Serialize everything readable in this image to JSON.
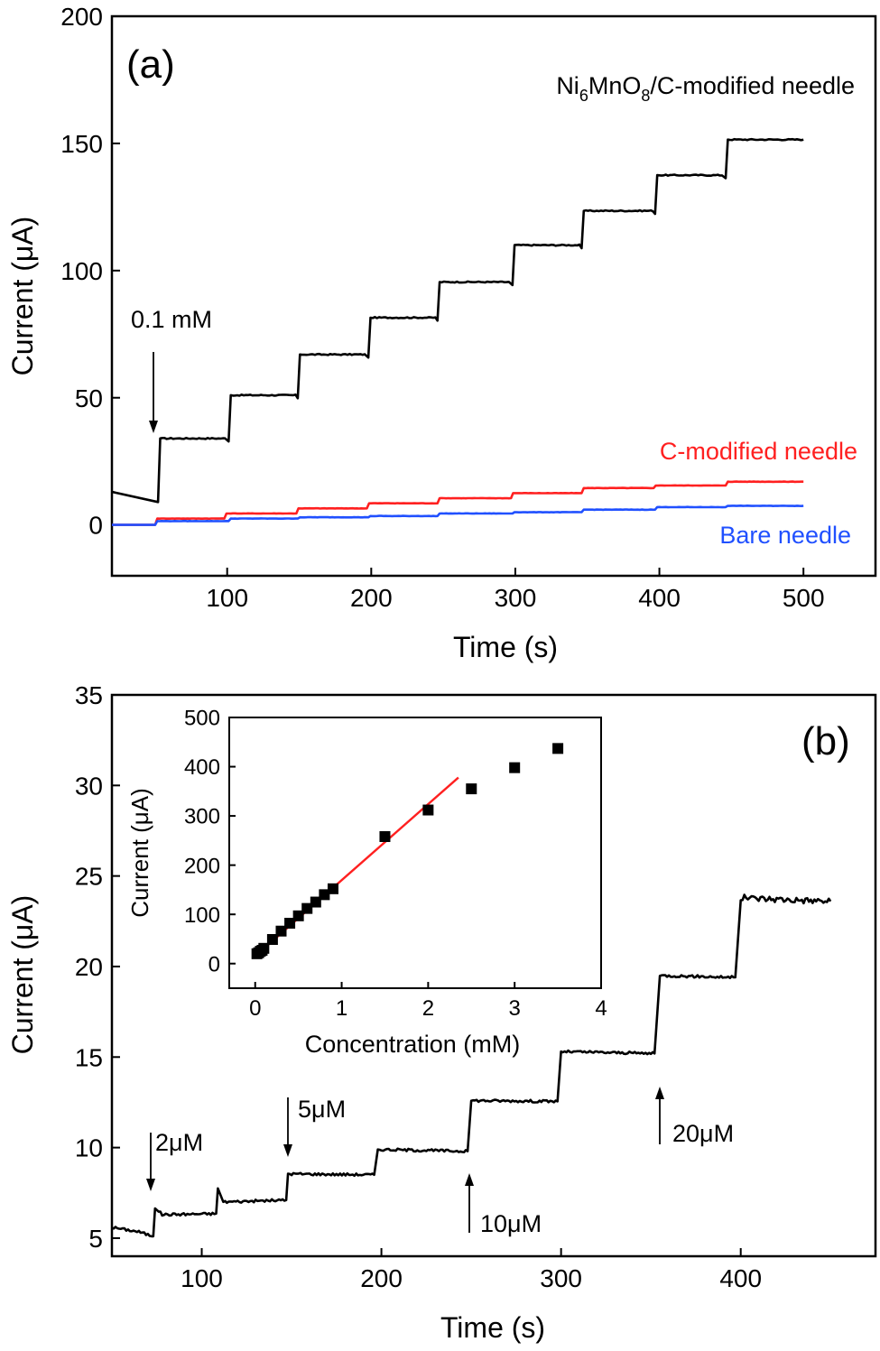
{
  "chart_data": [
    {
      "type": "line",
      "panel_label": "(a)",
      "xlabel": "Time (s)",
      "ylabel": "Current (μA)",
      "xlim": [
        20,
        550
      ],
      "ylim": [
        -20,
        200
      ],
      "xticks": [
        100,
        200,
        300,
        400,
        500
      ],
      "yticks": [
        0,
        50,
        100,
        150,
        200
      ],
      "grid": false,
      "series": [
        {
          "name": "Ni6MnO8/C-modified needle",
          "color": "#000000",
          "label_parts": {
            "a": "Ni",
            "b": "6",
            "c": "MnO",
            "d": "8",
            "e": "/C-modified needle"
          },
          "steps": {
            "start": 13,
            "pre_end": 9,
            "times": [
              52,
              101,
              149,
              198,
              246,
              298,
              346,
              397,
              446
            ],
            "levels": [
              34,
              51,
              67,
              81.5,
              95.5,
              110,
              123.5,
              137.5,
              151.5
            ],
            "end": 500
          }
        },
        {
          "name": "C-modified needle",
          "color": "#ff2020",
          "steps": {
            "start": 0,
            "pre_end": 0,
            "times": [
              50,
              98,
              148,
              197,
              246,
              297,
              346,
              396,
              446
            ],
            "levels": [
              2.5,
              4.5,
              6.5,
              8.5,
              10.5,
              12.5,
              14.5,
              15.5,
              17
            ],
            "end": 500
          }
        },
        {
          "name": "Bare needle",
          "color": "#2050ff",
          "steps": {
            "start": 0,
            "pre_end": 0,
            "times": [
              50,
              101,
              149,
              198,
              246,
              298,
              346,
              397,
              446
            ],
            "levels": [
              1.5,
              2.5,
              3,
              3.5,
              4.5,
              5,
              6,
              7,
              7.5
            ],
            "end": 500
          }
        }
      ],
      "annotations": [
        {
          "text": "0.1 mM",
          "x": 52,
          "y": 80
        }
      ]
    },
    {
      "type": "line",
      "panel_label": "(b)",
      "xlabel": "Time (s)",
      "ylabel": "Current (μA)",
      "xlim": [
        50,
        475
      ],
      "ylim": [
        4,
        35
      ],
      "xticks": [
        100,
        200,
        300,
        400
      ],
      "yticks": [
        5,
        10,
        15,
        20,
        25,
        30,
        35
      ],
      "grid": false,
      "series": [
        {
          "color": "#000000",
          "points": [
            [
              50,
              5.6
            ],
            [
              65,
              5.35
            ],
            [
              73,
              5.1
            ],
            [
              74,
              6.7
            ],
            [
              78,
              6.3
            ],
            [
              108,
              6.35
            ],
            [
              109,
              7.75
            ],
            [
              112,
              7.0
            ],
            [
              147,
              7.1
            ],
            [
              148,
              8.55
            ],
            [
              196,
              8.5
            ],
            [
              198,
              9.9
            ],
            [
              248,
              9.8
            ],
            [
              250,
              12.6
            ],
            [
              298,
              12.55
            ],
            [
              300,
              15.3
            ],
            [
              352,
              15.2
            ],
            [
              355,
              19.5
            ],
            [
              397,
              19.4
            ],
            [
              400,
              23.8
            ],
            [
              450,
              23.6
            ]
          ]
        }
      ],
      "annotations": [
        {
          "text": "2μM",
          "x": 72,
          "y": 9
        },
        {
          "text": "5μM",
          "x": 147,
          "y": 12.4
        },
        {
          "text": "10μM",
          "x": 249,
          "y": 6
        },
        {
          "text": "20μM",
          "x": 353,
          "y": 11
        }
      ],
      "inset": {
        "type": "scatter",
        "xlabel": "Concentration (mM)",
        "ylabel": "Current (μA)",
        "xlim": [
          -0.3,
          4
        ],
        "ylim": [
          -50,
          500
        ],
        "xticks": [
          0,
          1,
          2,
          3,
          4
        ],
        "yticks": [
          0,
          100,
          200,
          300,
          400,
          500
        ],
        "points": [
          [
            0.02,
            20
          ],
          [
            0.04,
            22
          ],
          [
            0.06,
            25
          ],
          [
            0.08,
            27
          ],
          [
            0.1,
            31
          ],
          [
            0.2,
            49
          ],
          [
            0.3,
            66
          ],
          [
            0.4,
            82
          ],
          [
            0.5,
            97
          ],
          [
            0.6,
            112
          ],
          [
            0.7,
            125
          ],
          [
            0.8,
            140
          ],
          [
            0.9,
            152
          ],
          [
            1.5,
            258
          ],
          [
            2.0,
            312
          ],
          [
            2.5,
            355
          ],
          [
            3.0,
            398
          ],
          [
            3.5,
            437
          ]
        ],
        "fit_line": {
          "color": "#ff2020",
          "x": [
            0,
            2.35
          ],
          "y": [
            15,
            378
          ]
        }
      }
    }
  ]
}
